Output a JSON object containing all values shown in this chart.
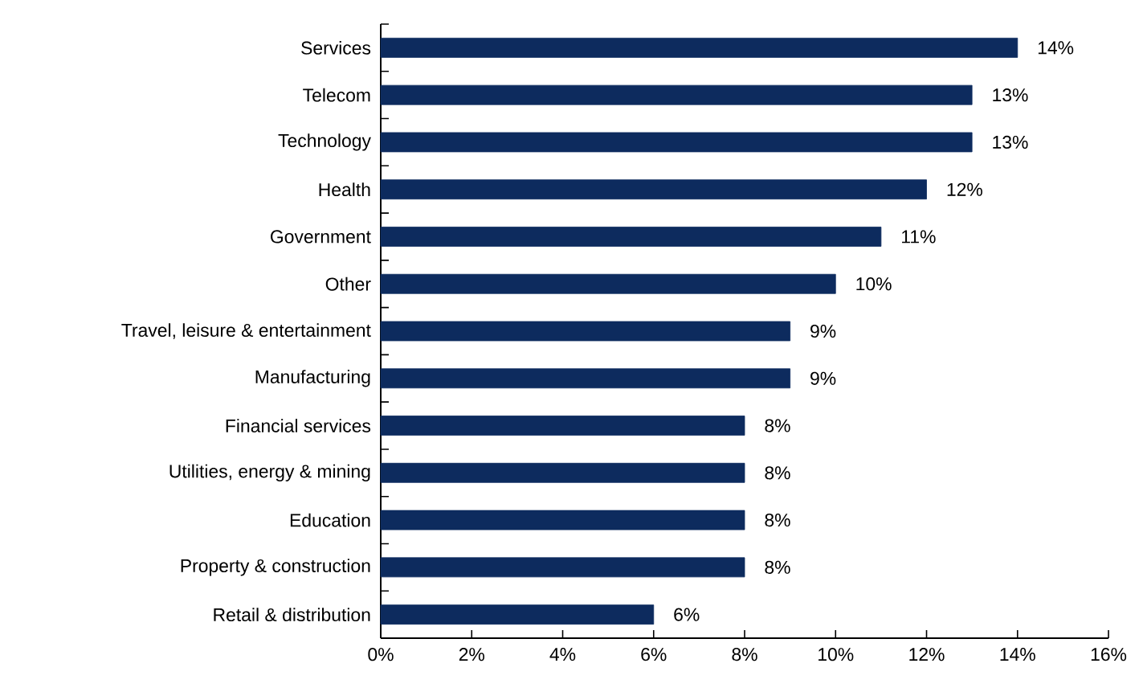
{
  "chart_data": {
    "type": "bar",
    "orientation": "horizontal",
    "categories": [
      "Services",
      "Telecom",
      "Technology",
      "Health",
      "Government",
      "Other",
      "Travel, leisure & entertainment",
      "Manufacturing",
      "Financial services",
      "Utilities, energy & mining",
      "Education",
      "Property & construction",
      "Retail & distribution"
    ],
    "values": [
      14,
      13,
      13,
      12,
      11,
      10,
      9,
      9,
      8,
      8,
      8,
      8,
      6
    ],
    "value_labels": [
      "14%",
      "13%",
      "13%",
      "12%",
      "11%",
      "10%",
      "9%",
      "9%",
      "8%",
      "8%",
      "8%",
      "8%",
      "6%"
    ],
    "color": "#0d2b5e",
    "xlim": [
      0,
      16
    ],
    "xticks": [
      {
        "value": 0,
        "label": "0%"
      },
      {
        "value": 2,
        "label": "2%"
      },
      {
        "value": 4,
        "label": "4%"
      },
      {
        "value": 6,
        "label": "6%"
      },
      {
        "value": 8,
        "label": "8%"
      },
      {
        "value": 10,
        "label": "10%"
      },
      {
        "value": 12,
        "label": "12%"
      },
      {
        "value": 14,
        "label": "14%"
      },
      {
        "value": 16,
        "label": "16%"
      }
    ],
    "grid": false
  }
}
